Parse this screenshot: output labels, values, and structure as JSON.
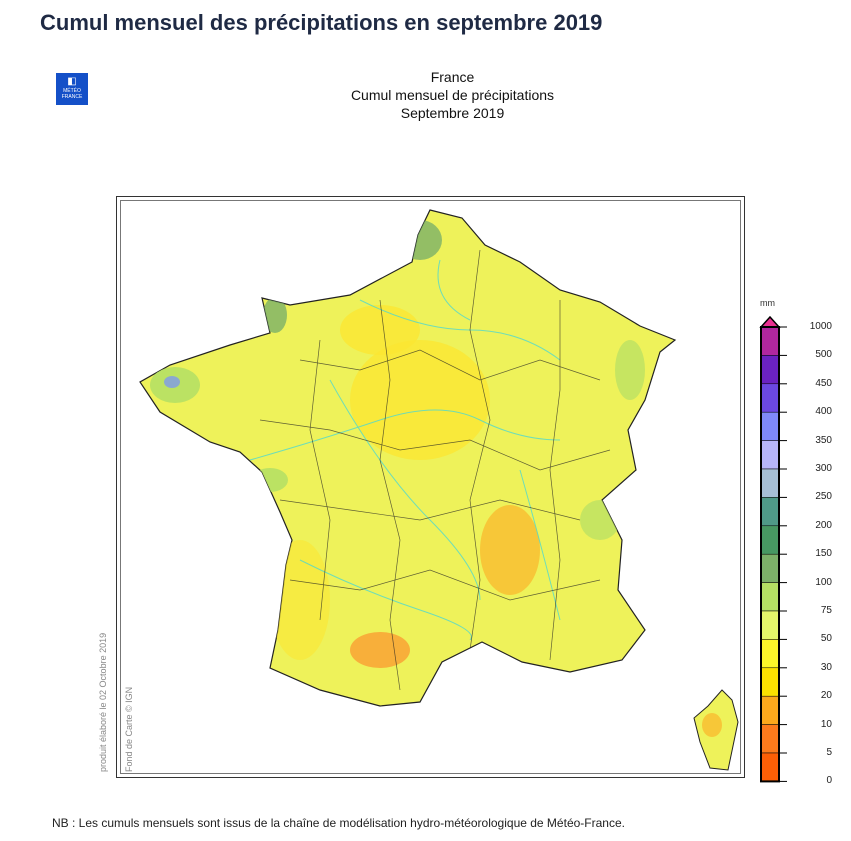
{
  "page_title": "Cumul mensuel des précipitations en septembre 2019",
  "logo": {
    "text": "MÉTÉO FRANCE"
  },
  "chart_header": {
    "line1": "France",
    "line2": "Cumul mensuel de précipitations",
    "line3": "Septembre 2019"
  },
  "side_text": {
    "produced": "produit élaboré le 02 Octobre 2019",
    "credit": "Fond de Carte © IGN"
  },
  "legend": {
    "unit": "mm",
    "ticks": [
      "1000",
      "500",
      "450",
      "400",
      "350",
      "300",
      "250",
      "200",
      "150",
      "100",
      "75",
      "50",
      "30",
      "20",
      "10",
      "5",
      "0"
    ],
    "colors": [
      "#b0279e",
      "#6a22c0",
      "#6b48e0",
      "#7f88f8",
      "#b6b5f8",
      "#a6bfd6",
      "#4f9a88",
      "#479862",
      "#7cb068",
      "#b5e064",
      "#e4f76a",
      "#fbf62a",
      "#fbe000",
      "#fba81c",
      "#fb7a1c",
      "#fb5f06"
    ],
    "over_color": "#e83090"
  },
  "note": "NB : Les cumuls mensuels sont issus de la chaîne de modélisation hydro-météorologique de Météo-France."
}
